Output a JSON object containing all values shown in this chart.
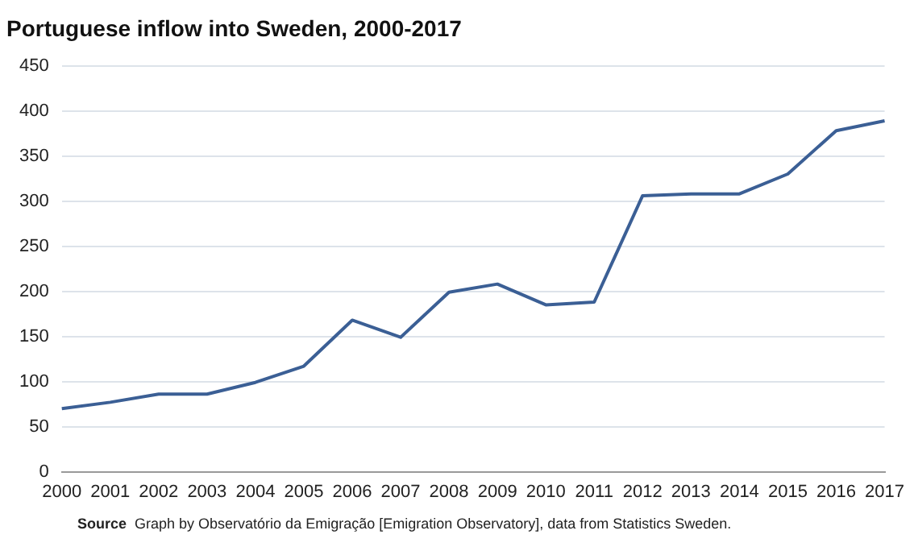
{
  "chart_data": {
    "type": "line",
    "title": "Portuguese inflow into Sweden, 2000-2017",
    "categories": [
      "2000",
      "2001",
      "2002",
      "2003",
      "2004",
      "2005",
      "2006",
      "2007",
      "2008",
      "2009",
      "2010",
      "2011",
      "2012",
      "2013",
      "2014",
      "2015",
      "2016",
      "2017"
    ],
    "series": [
      {
        "color": "#3b5f95",
        "values": [
          70,
          77,
          86,
          86,
          99,
          117,
          168,
          149,
          199,
          208,
          185,
          188,
          306,
          308,
          308,
          330,
          378,
          389
        ]
      }
    ],
    "ylim": [
      0,
      450
    ],
    "yticks": [
      0,
      50,
      100,
      150,
      200,
      250,
      300,
      350,
      400,
      450
    ],
    "grid": "y",
    "legend": false,
    "marker": "none",
    "line_style": "solid",
    "annotations": [
      "Source Graph by Observatório da Emigração [Emigration Observatory], data from Statistics Sweden."
    ]
  }
}
